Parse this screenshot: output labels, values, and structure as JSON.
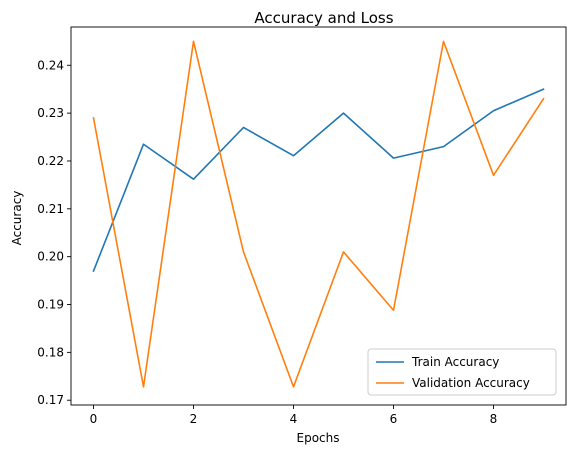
{
  "chart_data": {
    "type": "line",
    "title": "Accuracy and Loss",
    "xlabel": "Epochs",
    "ylabel": "Accuracy",
    "x": [
      0,
      1,
      2,
      3,
      4,
      5,
      6,
      7,
      8,
      9
    ],
    "xlim": [
      -0.45,
      9.45
    ],
    "ylim": [
      0.169,
      0.248
    ],
    "xticks": [
      0,
      2,
      4,
      6,
      8
    ],
    "xtick_labels": [
      "0",
      "2",
      "4",
      "6",
      "8"
    ],
    "yticks": [
      0.17,
      0.18,
      0.19,
      0.2,
      0.21,
      0.22,
      0.23,
      0.24
    ],
    "ytick_labels": [
      "0.17",
      "0.18",
      "0.19",
      "0.20",
      "0.21",
      "0.22",
      "0.23",
      "0.24"
    ],
    "grid": false,
    "legend_position": "lower-right",
    "series": [
      {
        "name": "Train Accuracy",
        "color": "#1f77b4",
        "values": [
          0.197,
          0.2235,
          0.2162,
          0.227,
          0.2211,
          0.23,
          0.2206,
          0.223,
          0.2305,
          0.235
        ]
      },
      {
        "name": "Validation Accuracy",
        "color": "#ff7f0e",
        "values": [
          0.229,
          0.1728,
          0.245,
          0.201,
          0.1728,
          0.201,
          0.1888,
          0.245,
          0.217,
          0.233
        ]
      }
    ]
  }
}
